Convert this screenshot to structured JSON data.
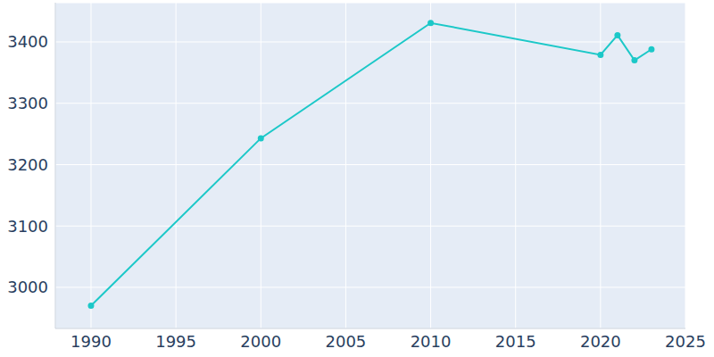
{
  "chart_data": {
    "type": "line",
    "x": [
      1990,
      2000,
      2010,
      2020,
      2021,
      2022,
      2023
    ],
    "values": [
      2970,
      3243,
      3431,
      3379,
      3411,
      3370,
      3388
    ],
    "color": "#1cc8c8",
    "marker": "circle",
    "xlim": [
      1987.9,
      2025
    ],
    "xticks": [
      1990,
      1995,
      2000,
      2005,
      2010,
      2015,
      2020,
      2025
    ],
    "ylim": [
      2933,
      3464
    ],
    "yticks": [
      3000,
      3100,
      3200,
      3300,
      3400
    ],
    "grid": true
  }
}
